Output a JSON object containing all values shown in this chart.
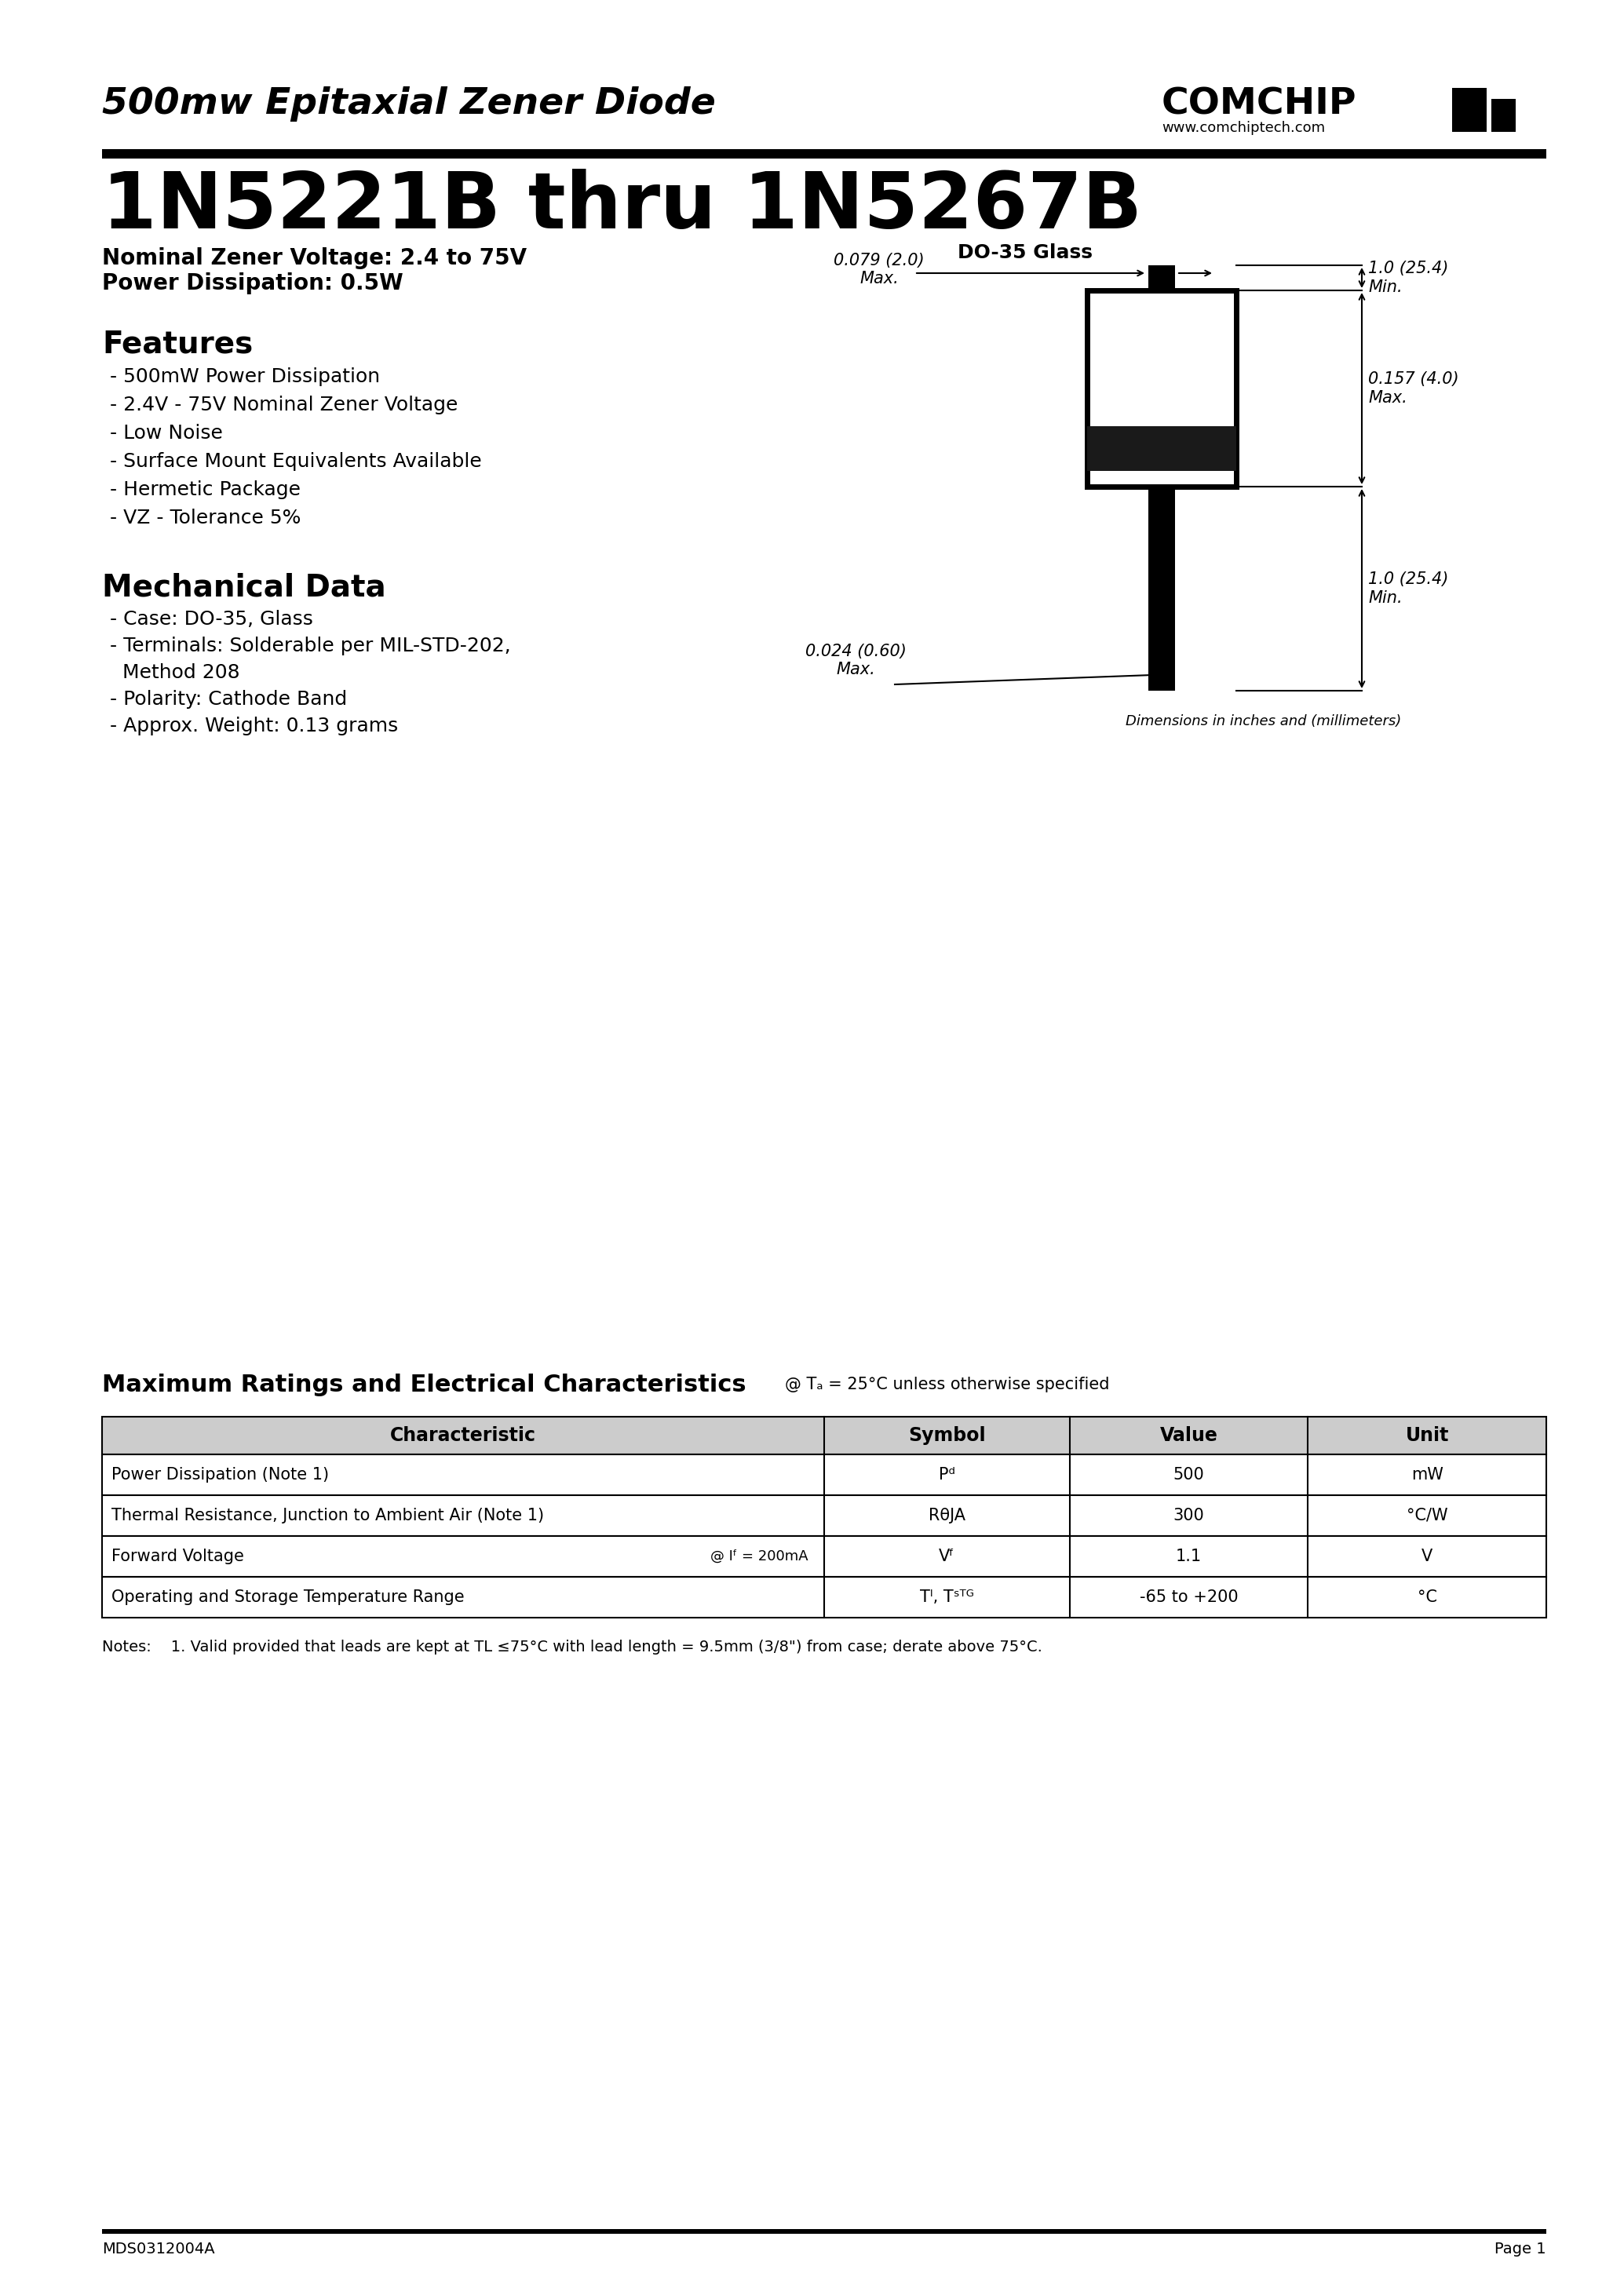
{
  "page_title": "500mw Epitaxial Zener Diode",
  "company": "COMCHIP",
  "website": "www.comchiptech.com",
  "part_number": "1N5221B thru 1N5267B",
  "nominal_voltage": "Nominal Zener Voltage: 2.4 to 75V",
  "power_dissipation": "Power Dissipation: 0.5W",
  "features_title": "Features",
  "features": [
    "- 500mW Power Dissipation",
    "- 2.4V - 75V Nominal Zener Voltage",
    "- Low Noise",
    "- Surface Mount Equivalents Available",
    "- Hermetic Package",
    "- VZ - Tolerance 5%"
  ],
  "mech_title": "Mechanical Data",
  "mech_data": [
    "- Case: DO-35, Glass",
    "- Terminals: Solderable per MIL-STD-202,",
    "  Method 208",
    "- Polarity: Cathode Band",
    "- Approx. Weight: 0.13 grams"
  ],
  "package_label": "DO-35 Glass",
  "dim_note": "Dimensions in inches and (millimeters)",
  "table_title": "Maximum Ratings and Electrical Characteristics",
  "table_subtitle": "@ Tₐ = 25°C unless otherwise specified",
  "table_headers": [
    "Characteristic",
    "Symbol",
    "Value",
    "Unit"
  ],
  "table_rows": [
    [
      "Power Dissipation (Note 1)",
      "Pᵈ",
      "500",
      "mW"
    ],
    [
      "Thermal Resistance, Junction to Ambient Air (Note 1)",
      "RθJA",
      "300",
      "°C/W"
    ],
    [
      "Forward Voltage",
      "Vᶠ",
      "1.1",
      "V"
    ],
    [
      "Operating and Storage Temperature Range",
      "Tᴵ, Tˢᵀᴳ",
      "-65 to +200",
      "°C"
    ]
  ],
  "fwd_voltage_note": "@ Iᶠ = 200mA",
  "notes": "Notes:    1. Valid provided that leads are kept at TL ≤75°C with lead length = 9.5mm (3/8\") from case; derate above 75°C.",
  "footer_left": "MDS0312004A",
  "footer_right": "Page 1",
  "bg_color": "#ffffff",
  "text_color": "#000000"
}
